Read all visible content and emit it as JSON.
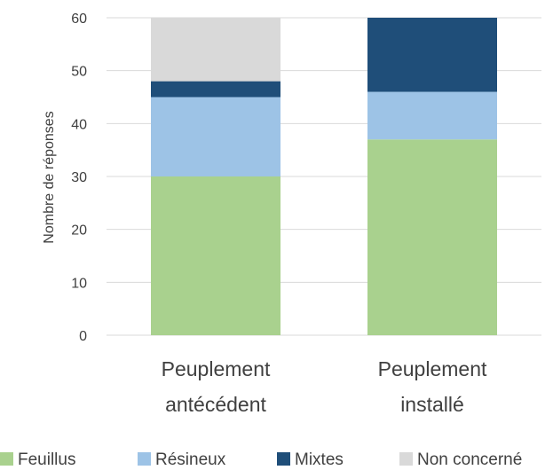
{
  "chart_data": {
    "type": "bar",
    "stacked": true,
    "categories": [
      [
        "Peuplement",
        "antécédent"
      ],
      [
        "Peuplement",
        "installé"
      ]
    ],
    "series": [
      {
        "name": "Feuillus",
        "color": "#a9d18e",
        "values": [
          30,
          37
        ]
      },
      {
        "name": "Résineux",
        "color": "#9dc3e6",
        "values": [
          15,
          9
        ]
      },
      {
        "name": "Mixtes",
        "color": "#1f4e79",
        "values": [
          3,
          14
        ]
      },
      {
        "name": "Non concerné",
        "color": "#d9d9d9",
        "values": [
          12,
          0
        ]
      }
    ],
    "ylabel": "Nombre de réponses",
    "ylim": [
      0,
      60
    ],
    "yticks": [
      0,
      10,
      20,
      30,
      40,
      50,
      60
    ],
    "grid": true,
    "legend_position": "bottom",
    "gridline_color": "#d9d9d9"
  }
}
